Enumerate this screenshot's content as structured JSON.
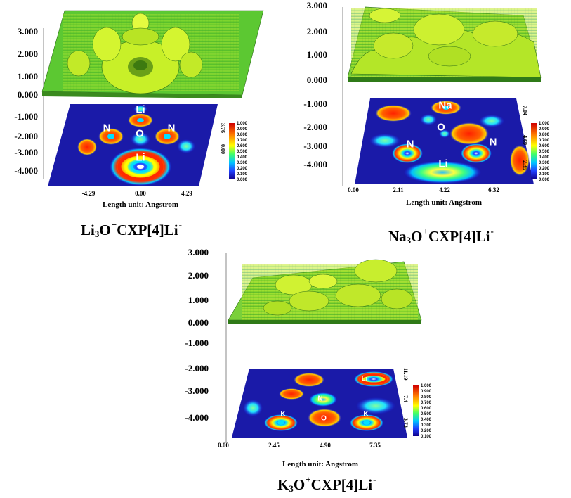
{
  "panels": [
    {
      "id": "li",
      "caption": {
        "m": "Li",
        "sub": "3",
        "o": "O",
        "sup1": "+",
        "mid": "CXP[4]Li",
        "sup2": "-"
      },
      "y_ticks": [
        "3.000",
        "2.000",
        "1.000",
        "0.000",
        "-1.000",
        "-2.000",
        "-3.000",
        "-4.000"
      ],
      "x_ticks": [
        "-4.29",
        "0.00",
        "4.29"
      ],
      "y_side": [
        "3.76",
        "0.00"
      ],
      "atoms": [
        "Li",
        "N",
        "O",
        "N",
        "Li"
      ],
      "unit": "Length unit: Angstrom"
    },
    {
      "id": "na",
      "caption": {
        "m": "Na",
        "sub": "3",
        "o": "O",
        "sup1": "+",
        "mid": "CXP[4]Li",
        "sup2": "-"
      },
      "y_ticks": [
        "3.000",
        "2.000",
        "1.000",
        "0.000",
        "-1.000",
        "-2.000",
        "-3.000",
        "-4.000"
      ],
      "x_ticks": [
        "0.00",
        "2.11",
        "4.22",
        "6.32"
      ],
      "y_side": [
        "7.04",
        "4.69",
        "2.35"
      ],
      "atoms": [
        "Na",
        "O",
        "N",
        "N",
        "Li"
      ],
      "unit": "Length unit: Angstrom"
    },
    {
      "id": "k",
      "caption": {
        "m": "K",
        "sub": "3",
        "o": "O",
        "sup1": "+",
        "mid": "CXP[4]Li",
        "sup2": "-"
      },
      "y_ticks": [
        "3.000",
        "2.000",
        "1.000",
        "0.000",
        "-1.000",
        "-2.000",
        "-3.000",
        "-4.000"
      ],
      "x_ticks": [
        "0.00",
        "2.45",
        "4.90",
        "7.35"
      ],
      "y_side": [
        "11.19",
        "7.4",
        "3.73"
      ],
      "atoms": [
        "Li",
        "N",
        "K",
        "O",
        "K"
      ],
      "unit": "Length unit: Angstrom"
    }
  ],
  "colorbar_ticks": [
    "1.000",
    "0.900",
    "0.800",
    "0.700",
    "0.600",
    "0.500",
    "0.400",
    "0.300",
    "0.200",
    "0.100",
    "0.000"
  ],
  "colorbar_ticks_k": [
    "1.000",
    "0.900",
    "0.800",
    "0.700",
    "0.600",
    "0.500",
    "0.400",
    "0.300",
    "0.200",
    "0.100"
  ]
}
